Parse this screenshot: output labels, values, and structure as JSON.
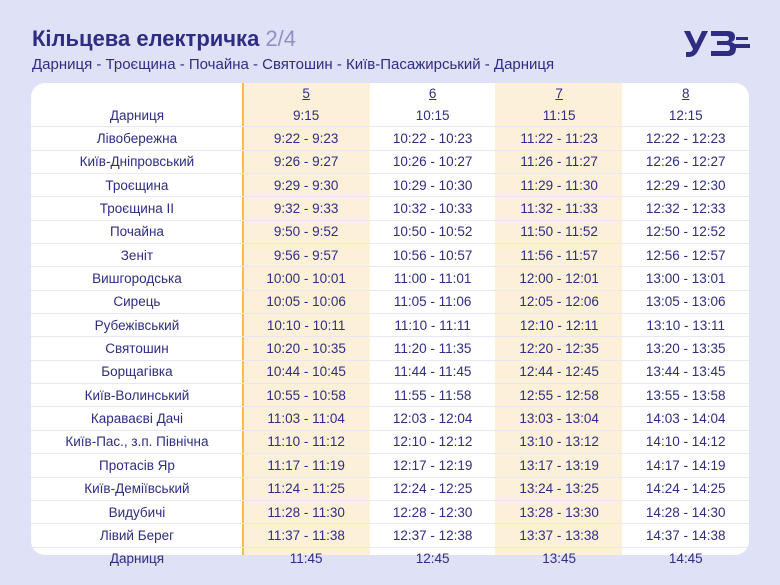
{
  "header": {
    "title": "Кільцева електричка",
    "part": "2/4",
    "route": "Дарниця - Троєщина - Почайна - Святошин - Київ-Пасажирський - Дарниця",
    "logo_text": "УЗ"
  },
  "colors": {
    "primary": "#2e2d82",
    "background": "#dfe1f7",
    "highlight_column": "#fdf0d8",
    "highlight_border": "#f2bb54"
  },
  "train_numbers": [
    "5",
    "6",
    "7",
    "8"
  ],
  "rows": [
    {
      "station": "Дарниця",
      "times": [
        "9:15",
        "10:15",
        "11:15",
        "12:15"
      ]
    },
    {
      "station": "Лівобережна",
      "times": [
        "9:22 - 9:23",
        "10:22 - 10:23",
        "11:22 - 11:23",
        "12:22 - 12:23"
      ]
    },
    {
      "station": "Київ-Дніпровський",
      "times": [
        "9:26 - 9:27",
        "10:26 - 10:27",
        "11:26 - 11:27",
        "12:26 - 12:27"
      ]
    },
    {
      "station": "Троєщина",
      "times": [
        "9:29 - 9:30",
        "10:29 - 10:30",
        "11:29 - 11:30",
        "12:29 - 12:30"
      ]
    },
    {
      "station": "Троєщина ІІ",
      "times": [
        "9:32 - 9:33",
        "10:32 - 10:33",
        "11:32 - 11:33",
        "12:32 - 12:33"
      ]
    },
    {
      "station": "Почайна",
      "times": [
        "9:50 - 9:52",
        "10:50 - 10:52",
        "11:50 - 11:52",
        "12:50 - 12:52"
      ]
    },
    {
      "station": "Зеніт",
      "times": [
        "9:56 - 9:57",
        "10:56 - 10:57",
        "11:56 - 11:57",
        "12:56 - 12:57"
      ]
    },
    {
      "station": "Вишгородська",
      "times": [
        "10:00 - 10:01",
        "11:00 - 11:01",
        "12:00 - 12:01",
        "13:00 - 13:01"
      ]
    },
    {
      "station": "Сирець",
      "times": [
        "10:05 - 10:06",
        "11:05 - 11:06",
        "12:05 - 12:06",
        "13:05 - 13:06"
      ]
    },
    {
      "station": "Рубежівський",
      "times": [
        "10:10 - 10:11",
        "11:10 - 11:11",
        "12:10 - 12:11",
        "13:10 - 13:11"
      ]
    },
    {
      "station": "Святошин",
      "times": [
        "10:20 - 10:35",
        "11:20 - 11:35",
        "12:20 - 12:35",
        "13:20 - 13:35"
      ]
    },
    {
      "station": "Борщагівка",
      "times": [
        "10:44 - 10:45",
        "11:44 - 11:45",
        "12:44 - 12:45",
        "13:44 - 13:45"
      ]
    },
    {
      "station": "Київ-Волинський",
      "times": [
        "10:55 - 10:58",
        "11:55 - 11:58",
        "12:55 - 12:58",
        "13:55 - 13:58"
      ]
    },
    {
      "station": "Караваєві Дачі",
      "times": [
        "11:03 - 11:04",
        "12:03 - 12:04",
        "13:03 - 13:04",
        "14:03 - 14:04"
      ]
    },
    {
      "station": "Київ-Пас., з.п. Північна",
      "times": [
        "11:10 - 11:12",
        "12:10 - 12:12",
        "13:10 - 13:12",
        "14:10 - 14:12"
      ]
    },
    {
      "station": "Протасів Яр",
      "times": [
        "11:17 - 11:19",
        "12:17 - 12:19",
        "13:17 - 13:19",
        "14:17 - 14:19"
      ]
    },
    {
      "station": "Київ-Деміївський",
      "times": [
        "11:24 - 11:25",
        "12:24 - 12:25",
        "13:24 - 13:25",
        "14:24 - 14:25"
      ]
    },
    {
      "station": "Видубичі",
      "times": [
        "11:28 - 11:30",
        "12:28 - 12:30",
        "13:28 - 13:30",
        "14:28 - 14:30"
      ]
    },
    {
      "station": "Лівий Берег",
      "times": [
        "11:37 - 11:38",
        "12:37 - 12:38",
        "13:37 - 13:38",
        "14:37 - 14:38"
      ]
    },
    {
      "station": "Дарниця",
      "times": [
        "11:45",
        "12:45",
        "13:45",
        "14:45"
      ]
    }
  ]
}
